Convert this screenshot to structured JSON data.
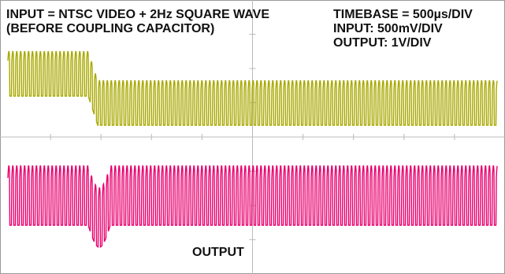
{
  "chart_data": {
    "type": "line",
    "title": "",
    "annotations": {
      "input_line1": "INPUT = NTSC VIDEO + 2Hz SQUARE WAVE",
      "input_line2": "(BEFORE COUPLING CAPACITOR)",
      "timebase": "TIMEBASE = 500µs/DIV",
      "input_scale": "INPUT: 500mV/DIV",
      "output_scale": "OUTPUT: 1V/DIV",
      "output_label": "OUTPUT"
    },
    "grid": true,
    "grid_divisions": {
      "x": 10,
      "y": 8
    },
    "series": [
      {
        "name": "INPUT",
        "color": "#a8a800"
      },
      {
        "name": "OUTPUT",
        "color": "#e8006e"
      }
    ]
  }
}
